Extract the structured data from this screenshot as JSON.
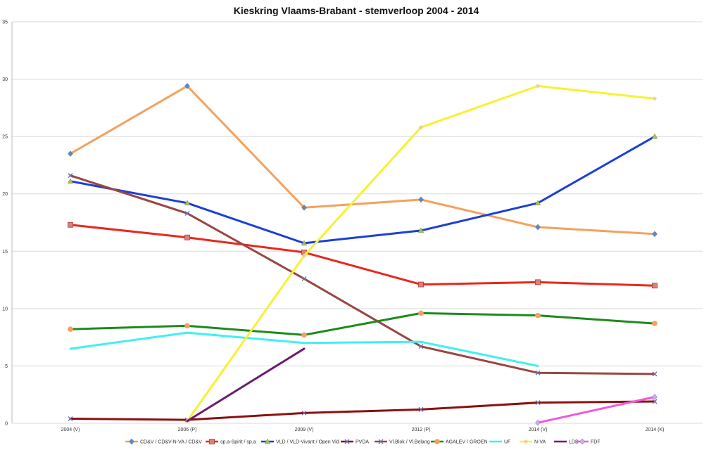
{
  "chart_data": {
    "type": "line",
    "title": "Kieskring Vlaams-Brabant - stemverloop 2004 - 2014",
    "xlabel": "",
    "ylabel": "",
    "categories": [
      "2004 (V)",
      "2006 (P)",
      "2009 (V)",
      "2012 (P)",
      "2014 (V)",
      "2014 (K)"
    ],
    "ylim": [
      0,
      35
    ],
    "yticks": [
      0,
      5,
      10,
      15,
      20,
      25,
      30,
      35
    ],
    "grid": true,
    "legend_position": "bottom",
    "series": [
      {
        "name": "CD&V / CD&V-N-VA / CD&V",
        "color": "#f2a25e",
        "marker": "diamond",
        "marker_color": "#5b8ac6",
        "values": [
          23.5,
          29.4,
          18.8,
          19.5,
          17.1,
          16.5
        ]
      },
      {
        "name": "sp.a-Spirit / sp.a",
        "color": "#e8281e",
        "marker": "square",
        "marker_color": "#d9827a",
        "values": [
          17.3,
          16.2,
          14.9,
          12.1,
          12.3,
          12.0
        ]
      },
      {
        "name": "VLD / VLD-Vivant / Open Vld",
        "color": "#1c3fd6",
        "marker": "triangle",
        "marker_color": "#a6c25c",
        "values": [
          21.1,
          19.2,
          15.7,
          16.8,
          19.2,
          25.0
        ]
      },
      {
        "name": "PVDA",
        "color": "#8b1010",
        "marker": "x",
        "marker_color": "#6b6fb0",
        "values": [
          0.4,
          0.3,
          0.9,
          1.2,
          1.8,
          1.9
        ]
      },
      {
        "name": "Vl.Blok / Vl.Belang",
        "color": "#9a4642",
        "marker": "x",
        "marker_color": "#6b6fb0",
        "values": [
          21.6,
          18.3,
          12.6,
          6.7,
          4.4,
          4.3
        ]
      },
      {
        "name": "AGALEV / GROEN",
        "color": "#1d8a1d",
        "marker": "circle",
        "marker_color": "#f2a25e",
        "values": [
          8.2,
          8.5,
          7.7,
          9.6,
          9.4,
          8.7
        ]
      },
      {
        "name": "UF",
        "color": "#40f0f0",
        "marker": "none",
        "marker_color": "#40f0f0",
        "values": [
          6.5,
          7.9,
          7.0,
          7.1,
          5.0,
          null
        ]
      },
      {
        "name": "N-VA",
        "color": "#f7f230",
        "marker": "star",
        "marker_color": "#f0c8a0",
        "values": [
          null,
          0.2,
          14.6,
          25.8,
          29.4,
          28.3
        ]
      },
      {
        "name": "LDD",
        "color": "#6e1a6e",
        "marker": "none",
        "marker_color": "#6e1a6e",
        "values": [
          null,
          0.2,
          6.5,
          null,
          null,
          null
        ]
      },
      {
        "name": "FDF",
        "color": "#f05adc",
        "marker": "diamond",
        "marker_color": "#d8a8f0",
        "values": [
          null,
          null,
          null,
          null,
          0.05,
          2.3
        ]
      }
    ]
  }
}
